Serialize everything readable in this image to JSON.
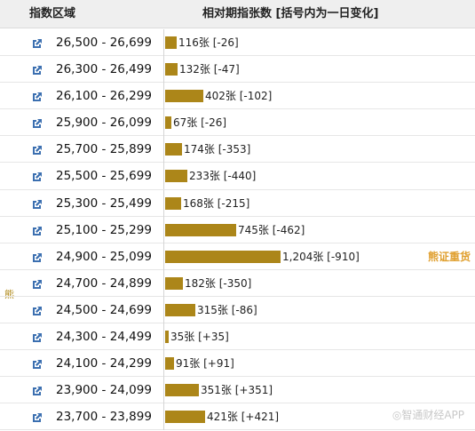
{
  "header": {
    "range_title": "指数区域",
    "change_title": "相对期指张数 [括号内为一日变化]"
  },
  "side_label": "熊",
  "tag_label": "熊证重货",
  "watermark": "◎智通财经APP",
  "colors": {
    "bar": "#ac8619",
    "tag": "#e0a030",
    "side": "#b08a1a"
  },
  "rows": [
    {
      "range": "26,500 - 26,699",
      "count": 116,
      "value": "116张 [-26]"
    },
    {
      "range": "26,300 - 26,499",
      "count": 132,
      "value": "132张 [-47]"
    },
    {
      "range": "26,100 - 26,299",
      "count": 402,
      "value": "402张 [-102]"
    },
    {
      "range": "25,900 - 26,099",
      "count": 67,
      "value": "67张 [-26]"
    },
    {
      "range": "25,700 - 25,899",
      "count": 174,
      "value": "174张 [-353]"
    },
    {
      "range": "25,500 - 25,699",
      "count": 233,
      "value": "233张 [-440]"
    },
    {
      "range": "25,300 - 25,499",
      "count": 168,
      "value": "168张 [-215]"
    },
    {
      "range": "25,100 - 25,299",
      "count": 745,
      "value": "745张 [-462]"
    },
    {
      "range": "24,900 - 25,099",
      "count": 1204,
      "value": "1,204张 [-910]",
      "tag": true
    },
    {
      "range": "24,700 - 24,899",
      "count": 182,
      "value": "182张 [-350]"
    },
    {
      "range": "24,500 - 24,699",
      "count": 315,
      "value": "315张 [-86]"
    },
    {
      "range": "24,300 - 24,499",
      "count": 35,
      "value": "35张 [+35]"
    },
    {
      "range": "24,100 - 24,299",
      "count": 91,
      "value": "91张 [+91]"
    },
    {
      "range": "23,900 - 24,099",
      "count": 351,
      "value": "351张 [+351]"
    },
    {
      "range": "23,700 - 23,899",
      "count": 421,
      "value": "421张 [+421]"
    }
  ]
}
